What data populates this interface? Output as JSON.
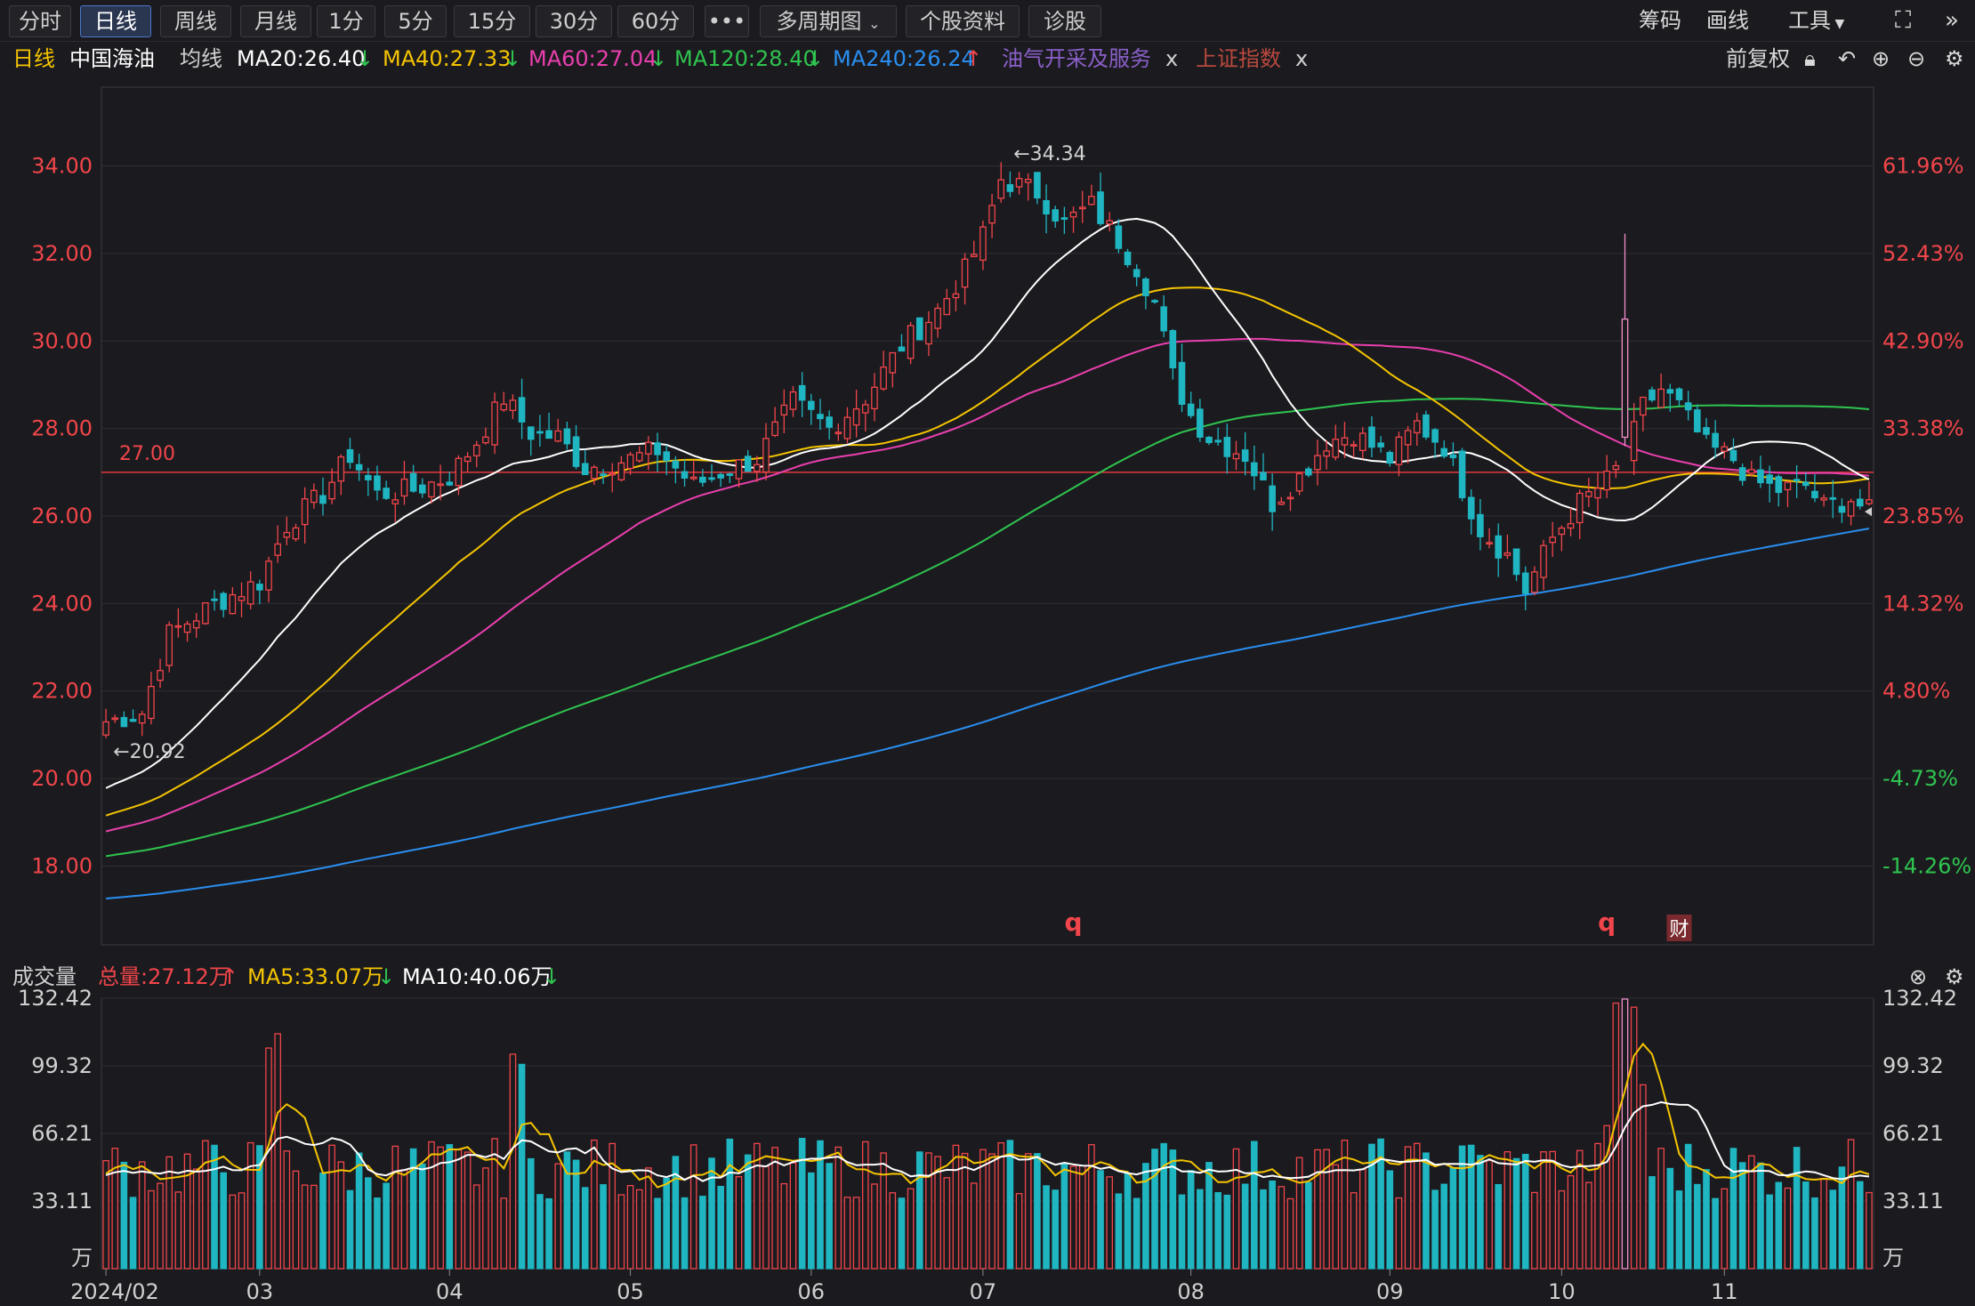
{
  "toolbar": {
    "tabs": [
      {
        "label": "分时"
      },
      {
        "label": "日线",
        "active": true
      },
      {
        "label": "周线"
      },
      {
        "label": "月线"
      },
      {
        "label": "1分"
      },
      {
        "label": "5分"
      },
      {
        "label": "15分"
      },
      {
        "label": "30分"
      },
      {
        "label": "60分"
      },
      {
        "label": "•••"
      },
      {
        "label": "多周期图"
      },
      {
        "label": "个股资料"
      },
      {
        "label": "诊股"
      }
    ],
    "right": {
      "chips": "筹码",
      "draw": "画线",
      "tools": "工具"
    }
  },
  "legend": {
    "period": "日线",
    "stock": "中国海油",
    "ma_label": "均线",
    "ma20": "MA20:26.40",
    "ma40": "MA40:27.33",
    "ma60": "MA60:27.04",
    "ma120": "MA120:28.40",
    "ma240": "MA240:26.24",
    "overlay1": "油气开采及服务",
    "overlay2": "上证指数",
    "close_mark": "x",
    "adjust": "前复权"
  },
  "volume_legend": {
    "title": "成交量",
    "total": "总量:27.12万",
    "ma5": "MA5:33.07万",
    "ma10": "MA10:40.06万"
  },
  "colors": {
    "up": "#f0454a",
    "down": "#1fb6c2",
    "ma20": "#ffffff",
    "ma40": "#f5c400",
    "ma60": "#ea3fae",
    "ma120": "#2fc44f",
    "ma240": "#2a8ef0",
    "grid": "#2e2e34"
  },
  "chart_data": {
    "type": "candlestick",
    "price_axis": {
      "ticks": [
        "34.00",
        "32.00",
        "30.00",
        "28.00",
        "26.00",
        "24.00",
        "22.00",
        "20.00",
        "18.00"
      ],
      "range": [
        16.2,
        35.8
      ]
    },
    "pct_axis": {
      "ticks": [
        "61.96%",
        "52.43%",
        "42.90%",
        "33.38%",
        "23.85%",
        "14.32%",
        "4.80%",
        "-4.73%",
        "-14.26%"
      ]
    },
    "reference_line": {
      "value": 27.0,
      "label": "27.00"
    },
    "annotations": {
      "high": "←34.34",
      "low": "←20.92",
      "event_marks": [
        "q",
        "q"
      ],
      "badge": "财"
    },
    "x_labels": [
      "2024/02",
      "03",
      "04",
      "05",
      "06",
      "07",
      "08",
      "09",
      "10",
      "11"
    ],
    "month_index": [
      0,
      17,
      38,
      58,
      78,
      97,
      120,
      142,
      161,
      179
    ],
    "n": 196,
    "anchors": [
      [
        0,
        21.3
      ],
      [
        4,
        21.5
      ],
      [
        7,
        23.3
      ],
      [
        12,
        24.0
      ],
      [
        17,
        24.5
      ],
      [
        20,
        25.8
      ],
      [
        24,
        26.5
      ],
      [
        27,
        27.4
      ],
      [
        30,
        26.5
      ],
      [
        34,
        26.6
      ],
      [
        38,
        26.9
      ],
      [
        41,
        27.7
      ],
      [
        44,
        28.7
      ],
      [
        47,
        27.9
      ],
      [
        50,
        27.8
      ],
      [
        53,
        27.1
      ],
      [
        58,
        27.3
      ],
      [
        61,
        27.5
      ],
      [
        65,
        26.7
      ],
      [
        68,
        27.0
      ],
      [
        72,
        27.3
      ],
      [
        76,
        28.6
      ],
      [
        80,
        28.0
      ],
      [
        84,
        28.7
      ],
      [
        88,
        29.9
      ],
      [
        92,
        30.7
      ],
      [
        95,
        31.6
      ],
      [
        97,
        32.4
      ],
      [
        99,
        33.7
      ],
      [
        103,
        33.4
      ],
      [
        106,
        32.7
      ],
      [
        109,
        33.1
      ],
      [
        112,
        32.3
      ],
      [
        114,
        31.7
      ],
      [
        116,
        30.9
      ],
      [
        118,
        29.2
      ],
      [
        120,
        28.3
      ],
      [
        122,
        27.8
      ],
      [
        126,
        27.4
      ],
      [
        129,
        26.3
      ],
      [
        132,
        26.9
      ],
      [
        135,
        27.7
      ],
      [
        138,
        27.9
      ],
      [
        142,
        27.3
      ],
      [
        145,
        28.1
      ],
      [
        148,
        27.6
      ],
      [
        152,
        25.7
      ],
      [
        155,
        25.1
      ],
      [
        157,
        24.3
      ],
      [
        160,
        25.5
      ],
      [
        163,
        26.3
      ],
      [
        166,
        26.8
      ],
      [
        168,
        27.3
      ],
      [
        170,
        28.5
      ],
      [
        172,
        28.9
      ],
      [
        174,
        28.5
      ],
      [
        177,
        27.6
      ],
      [
        180,
        27.3
      ],
      [
        182,
        26.8
      ],
      [
        185,
        26.6
      ],
      [
        188,
        26.7
      ],
      [
        190,
        26.2
      ],
      [
        193,
        26.4
      ],
      [
        195,
        26.1
      ]
    ],
    "ma_final": {
      "ma20": 26.4,
      "ma40": 27.33,
      "ma60": 27.04,
      "ma120": 28.4,
      "ma240": 26.24
    },
    "volume_axis": {
      "ticks": [
        "132.42",
        "99.32",
        "66.21",
        "33.11"
      ],
      "unit": "万",
      "range": [
        0,
        132.42
      ]
    },
    "volume_spikes": {
      "18": 108,
      "19": 115,
      "45": 105,
      "46": 100,
      "150": 60,
      "166": 70,
      "167": 130,
      "168": 132,
      "169": 128,
      "170": 90
    }
  }
}
